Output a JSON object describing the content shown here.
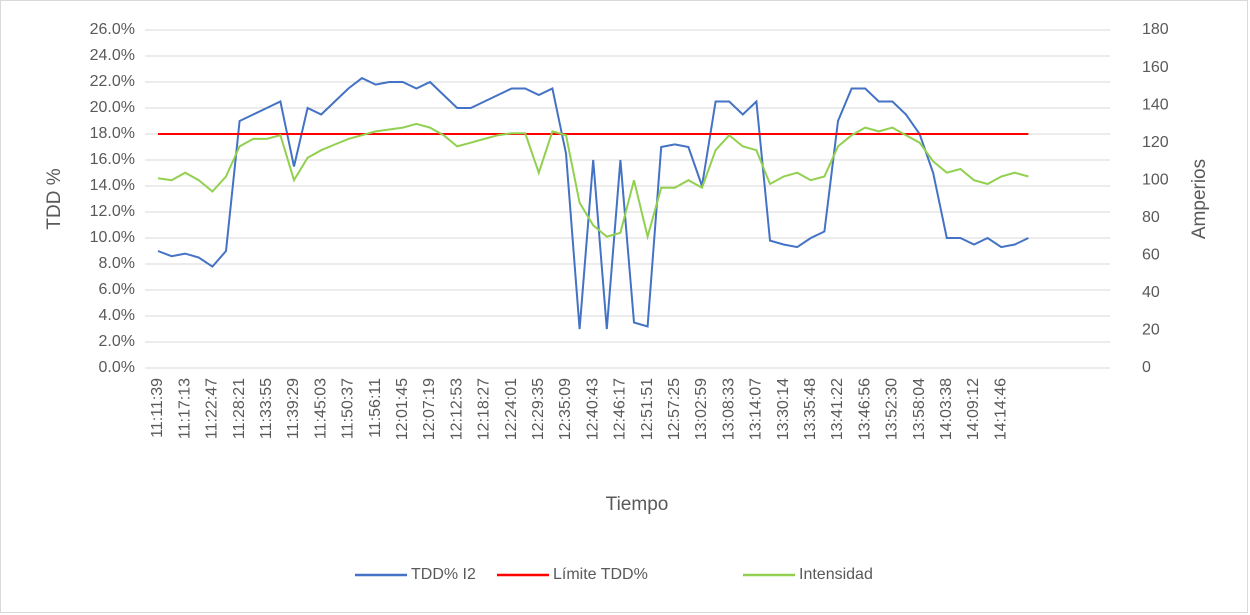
{
  "chart_data": {
    "type": "line",
    "x_label": "Tiempo",
    "y_label": "TDD %",
    "y2_label": "Amperios",
    "categories": [
      "11:11:39",
      null,
      "11:17:13",
      null,
      "11:22:47",
      null,
      "11:28:21",
      null,
      "11:33:55",
      null,
      "11:39:29",
      null,
      "11:45:03",
      null,
      "11:50:37",
      null,
      "11:56:11",
      null,
      "12:01:45",
      null,
      "12:07:19",
      null,
      "12:12:53",
      null,
      "12:18:27",
      null,
      "12:24:01",
      null,
      "12:29:35",
      null,
      "12:35:09",
      null,
      "12:40:43",
      null,
      "12:46:17",
      null,
      "12:51:51",
      null,
      "12:57:25",
      null,
      "13:02:59",
      null,
      "13:08:33",
      null,
      "13:14:07",
      null,
      "13:30:14",
      null,
      "13:35:48",
      null,
      "13:41:22",
      null,
      "13:46:56",
      null,
      "13:52:30",
      null,
      "13:58:04",
      null,
      "14:03:38",
      null,
      "14:09:12",
      null,
      "14:14:46",
      null,
      null
    ],
    "series": [
      {
        "name": "TDD% I2",
        "color": "#4472c4",
        "values": [
          9.0,
          8.6,
          8.8,
          8.5,
          7.8,
          9.0,
          19.0,
          19.5,
          20.0,
          20.5,
          15.5,
          20.0,
          19.5,
          20.5,
          21.5,
          22.3,
          21.8,
          22.0,
          22.0,
          21.5,
          22.0,
          21.0,
          20.0,
          20.0,
          20.5,
          21.0,
          21.5,
          21.5,
          21.0,
          21.5,
          16.5,
          3.0,
          16.0,
          3.0,
          16.0,
          3.5,
          3.2,
          17.0,
          17.2,
          17.0,
          14.0,
          20.5,
          20.5,
          19.5,
          20.5,
          9.8,
          9.5,
          9.3,
          10.0,
          10.5,
          19.0,
          21.5,
          21.5,
          20.5,
          20.5,
          19.5,
          18.0,
          15.0,
          10.0,
          10.0,
          9.5,
          10.0,
          9.3,
          9.5,
          10.0
        ]
      },
      {
        "name": "Límite TDD%",
        "color": "#ff0000",
        "values": [
          18,
          18,
          18,
          18,
          18,
          18,
          18,
          18,
          18,
          18,
          18,
          18,
          18,
          18,
          18,
          18,
          18,
          18,
          18,
          18,
          18,
          18,
          18,
          18,
          18,
          18,
          18,
          18,
          18,
          18,
          18,
          18,
          18,
          18,
          18,
          18,
          18,
          18,
          18,
          18,
          18,
          18,
          18,
          18,
          18,
          18,
          18,
          18,
          18,
          18,
          18,
          18,
          18,
          18,
          18,
          18,
          18,
          18,
          18,
          18,
          18,
          18,
          18,
          18,
          18
        ]
      },
      {
        "name": "Intensidad",
        "color": "#92d050",
        "axis": "y2",
        "values": [
          101,
          100,
          104,
          100,
          94,
          102,
          118,
          122,
          122,
          124,
          100,
          112,
          116,
          119,
          122,
          124,
          126,
          127,
          128,
          130,
          128,
          124,
          118,
          120,
          122,
          124,
          125,
          125,
          104,
          126,
          124,
          88,
          76,
          70,
          72,
          100,
          70,
          96,
          96,
          100,
          96,
          116,
          124,
          118,
          116,
          98,
          102,
          104,
          100,
          102,
          118,
          124,
          128,
          126,
          128,
          124,
          120,
          110,
          104,
          106,
          100,
          98,
          102,
          104,
          102
        ]
      }
    ],
    "ylim": [
      0,
      26
    ],
    "yticks": [
      {
        "value": 0,
        "label": "0.0%"
      },
      {
        "value": 2,
        "label": "2.0%"
      },
      {
        "value": 4,
        "label": "4.0%"
      },
      {
        "value": 6,
        "label": "6.0%"
      },
      {
        "value": 8,
        "label": "8.0%"
      },
      {
        "value": 10,
        "label": "10.0%"
      },
      {
        "value": 12,
        "label": "12.0%"
      },
      {
        "value": 14,
        "label": "14.0%"
      },
      {
        "value": 16,
        "label": "16.0%"
      },
      {
        "value": 18,
        "label": "18.0%"
      },
      {
        "value": 20,
        "label": "20.0%"
      },
      {
        "value": 22,
        "label": "22.0%"
      },
      {
        "value": 24,
        "label": "24.0%"
      },
      {
        "value": 26,
        "label": "26.0%"
      }
    ],
    "y2lim": [
      0,
      180
    ],
    "y2ticks": [
      0,
      20,
      40,
      60,
      80,
      100,
      120,
      140,
      160,
      180
    ],
    "grid": true,
    "legend": "bottom"
  }
}
